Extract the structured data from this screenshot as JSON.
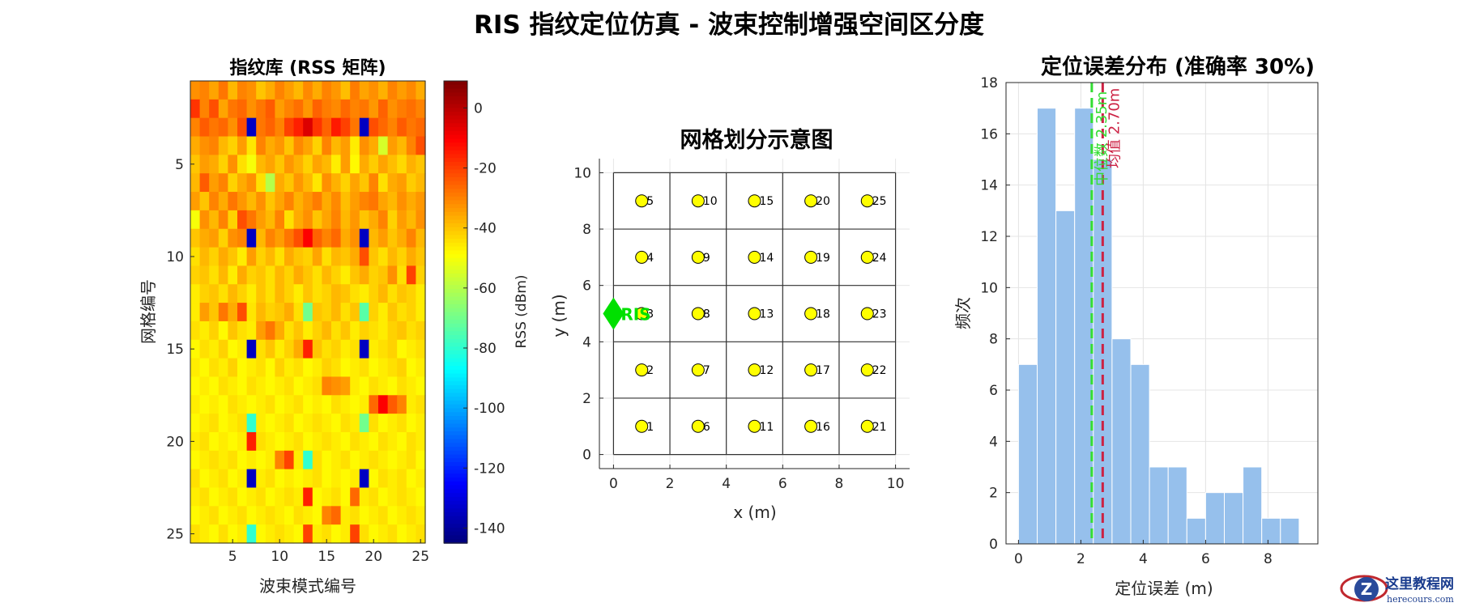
{
  "figure": {
    "title": "RIS 指纹定位仿真 - 波束控制增强空间区分度"
  },
  "chart_data": [
    {
      "type": "heatmap",
      "title": "指纹库 (RSS 矩阵)",
      "xlabel": "波束模式编号",
      "ylabel": "网格编号",
      "xticks": [
        5,
        10,
        15,
        20,
        25
      ],
      "yticks": [
        5,
        10,
        15,
        20,
        25
      ],
      "xlim": [
        0.5,
        25.5
      ],
      "ylim": [
        0.5,
        25.5
      ],
      "colorbar": {
        "label": "RSS (dBm)",
        "clim": [
          -145,
          9
        ],
        "ticks": [
          0,
          -20,
          -40,
          -60,
          -80,
          -100,
          -120,
          -140
        ],
        "colormap": "jet"
      },
      "matrix": [
        [
          -32,
          -30,
          -35,
          -28,
          -38,
          -30,
          -32,
          -40,
          -36,
          -30,
          -34,
          -38,
          -31,
          -36,
          -30,
          -33,
          -39,
          -29,
          -35,
          -32,
          -37,
          -30,
          -34,
          -31,
          -36
        ],
        [
          -18,
          -30,
          -22,
          -35,
          -28,
          -26,
          -32,
          -28,
          -24,
          -34,
          -30,
          -27,
          -33,
          -25,
          -29,
          -31,
          -26,
          -30,
          -28,
          -33,
          -25,
          -32,
          -29,
          -27,
          -30
        ],
        [
          -30,
          -24,
          -28,
          -26,
          -32,
          -22,
          -135,
          -28,
          -25,
          -30,
          -20,
          -15,
          -5,
          -18,
          -25,
          -14,
          -20,
          -28,
          -135,
          -22,
          -26,
          -30,
          -24,
          -28,
          -26
        ],
        [
          -36,
          -32,
          -30,
          -38,
          -42,
          -34,
          -45,
          -30,
          -36,
          -33,
          -40,
          -31,
          -35,
          -42,
          -30,
          -38,
          -34,
          -46,
          -32,
          -36,
          -55,
          -34,
          -38,
          -30,
          -22
        ],
        [
          -40,
          -34,
          -36,
          -42,
          -32,
          -44,
          -50,
          -38,
          -35,
          -40,
          -33,
          -37,
          -42,
          -35,
          -38,
          -46,
          -34,
          -48,
          -36,
          -41,
          -35,
          -39,
          -43,
          -37,
          -40
        ],
        [
          -38,
          -24,
          -34,
          -30,
          -42,
          -36,
          -32,
          -44,
          -60,
          -36,
          -40,
          -33,
          -38,
          -45,
          -32,
          -37,
          -42,
          -35,
          -40,
          -30,
          -44,
          -36,
          -34,
          -41,
          -38
        ],
        [
          -34,
          -40,
          -30,
          -36,
          -28,
          -33,
          -38,
          -32,
          -40,
          -35,
          -30,
          -37,
          -33,
          -29,
          -36,
          -31,
          -39,
          -34,
          -30,
          -28,
          -35,
          -38,
          -32,
          -36,
          -33
        ],
        [
          -50,
          -32,
          -38,
          -30,
          -42,
          -22,
          -28,
          -34,
          -38,
          -30,
          -44,
          -36,
          -32,
          -40,
          -35,
          -30,
          -38,
          -33,
          -40,
          -36,
          -30,
          -42,
          -34,
          -38,
          -32
        ],
        [
          -40,
          -36,
          -34,
          -42,
          -32,
          -30,
          -135,
          -38,
          -30,
          -34,
          -28,
          -22,
          -10,
          -25,
          -30,
          -26,
          -36,
          -32,
          -135,
          -38,
          -34,
          -40,
          -36,
          -30,
          -38
        ],
        [
          -44,
          -38,
          -42,
          -36,
          -40,
          -46,
          -34,
          -42,
          -38,
          -44,
          -36,
          -40,
          -42,
          -35,
          -44,
          -38,
          -40,
          -36,
          -22,
          -40,
          -44,
          -38,
          -42,
          -36,
          -40
        ],
        [
          -42,
          -40,
          -44,
          -38,
          -46,
          -36,
          -42,
          -40,
          -44,
          -38,
          -42,
          -36,
          -40,
          -44,
          -38,
          -42,
          -46,
          -40,
          -36,
          -42,
          -40,
          -32,
          -44,
          -20,
          -42
        ],
        [
          -46,
          -42,
          -40,
          -44,
          -38,
          -42,
          -46,
          -40,
          -44,
          -38,
          -42,
          -46,
          -40,
          -44,
          -42,
          -38,
          -40,
          -44,
          -46,
          -42,
          -38,
          -44,
          -40,
          -42,
          -46
        ],
        [
          -46,
          -34,
          -40,
          -28,
          -36,
          -22,
          -45,
          -38,
          -42,
          -40,
          -36,
          -44,
          -70,
          -40,
          -42,
          -38,
          -44,
          -40,
          -74,
          -42,
          -46,
          -40,
          -44,
          -42,
          -46
        ],
        [
          -44,
          -46,
          -42,
          -48,
          -40,
          -44,
          -46,
          -34,
          -28,
          -36,
          -44,
          -40,
          -46,
          -42,
          -38,
          -44,
          -40,
          -46,
          -42,
          -44,
          -46,
          -42,
          -40,
          -44,
          -42
        ],
        [
          -48,
          -44,
          -46,
          -42,
          -48,
          -46,
          -135,
          -44,
          -40,
          -46,
          -42,
          -36,
          -15,
          -40,
          -44,
          -42,
          -46,
          -44,
          -135,
          -46,
          -44,
          -42,
          -48,
          -46,
          -44
        ],
        [
          -46,
          -48,
          -44,
          -46,
          -42,
          -48,
          -46,
          -44,
          -48,
          -42,
          -46,
          -44,
          -48,
          -46,
          -42,
          -44,
          -48,
          -46,
          -44,
          -48,
          -46,
          -44,
          -42,
          -48,
          -46
        ],
        [
          -48,
          -46,
          -48,
          -44,
          -46,
          -48,
          -44,
          -46,
          -48,
          -46,
          -44,
          -48,
          -46,
          -44,
          -30,
          -32,
          -34,
          -46,
          -48,
          -44,
          -46,
          -48,
          -44,
          -46,
          -48
        ],
        [
          -46,
          -48,
          -46,
          -48,
          -44,
          -46,
          -48,
          -46,
          -44,
          -48,
          -46,
          -44,
          -48,
          -46,
          -48,
          -44,
          -46,
          -48,
          -46,
          -26,
          -10,
          -24,
          -30,
          -46,
          -44
        ],
        [
          -48,
          -46,
          -44,
          -48,
          -46,
          -44,
          -80,
          -46,
          -48,
          -46,
          -44,
          -48,
          -46,
          -44,
          -46,
          -48,
          -44,
          -46,
          -70,
          -44,
          -48,
          -46,
          -44,
          -48,
          -46
        ],
        [
          -46,
          -44,
          -48,
          -46,
          -48,
          -46,
          -15,
          -44,
          -46,
          -48,
          -46,
          -44,
          -48,
          -46,
          -44,
          -46,
          -48,
          -44,
          -46,
          -48,
          -44,
          -46,
          -48,
          -44,
          -46
        ],
        [
          -48,
          -46,
          -44,
          -46,
          -44,
          -48,
          -46,
          -48,
          -46,
          -30,
          -20,
          -46,
          -80,
          -44,
          -48,
          -46,
          -44,
          -48,
          -46,
          -44,
          -46,
          -48,
          -46,
          -44,
          -48
        ],
        [
          -44,
          -48,
          -46,
          -44,
          -48,
          -46,
          -135,
          -46,
          -44,
          -48,
          -46,
          -48,
          -46,
          -44,
          -48,
          -46,
          -48,
          -46,
          -135,
          -48,
          -44,
          -46,
          -44,
          -48,
          -46
        ],
        [
          -46,
          -44,
          -48,
          -46,
          -44,
          -48,
          -46,
          -44,
          -48,
          -46,
          -44,
          -46,
          -15,
          -48,
          -46,
          -44,
          -48,
          -26,
          -46,
          -44,
          -48,
          -46,
          -44,
          -46,
          -48
        ],
        [
          -48,
          -46,
          -44,
          -48,
          -46,
          -44,
          -48,
          -46,
          -44,
          -46,
          -48,
          -44,
          -46,
          -48,
          -30,
          -26,
          -46,
          -44,
          -48,
          -46,
          -44,
          -48,
          -46,
          -44,
          -46
        ],
        [
          -44,
          -46,
          -48,
          -44,
          -48,
          -46,
          -80,
          -48,
          -46,
          -44,
          -46,
          -48,
          -20,
          -46,
          -44,
          -48,
          -46,
          -20,
          -44,
          -48,
          -46,
          -44,
          -48,
          -46,
          -44
        ]
      ]
    },
    {
      "type": "scatter",
      "title": "网格划分示意图",
      "xlabel": "x (m)",
      "ylabel": "y (m)",
      "xlim": [
        -0.5,
        10.5
      ],
      "ylim": [
        -0.5,
        10.5
      ],
      "xticks": [
        0,
        2,
        4,
        6,
        8,
        10
      ],
      "yticks": [
        0,
        2,
        4,
        6,
        8,
        10
      ],
      "grid_lines": [
        0,
        2,
        4,
        6,
        8,
        10
      ],
      "ris_marker": {
        "x": 0,
        "y": 5,
        "label": "RIS",
        "color": "#00e000"
      },
      "points": [
        {
          "x": 1,
          "y": 1,
          "label": "1"
        },
        {
          "x": 1,
          "y": 3,
          "label": "2"
        },
        {
          "x": 1,
          "y": 5,
          "label": "3"
        },
        {
          "x": 1,
          "y": 7,
          "label": "4"
        },
        {
          "x": 1,
          "y": 9,
          "label": "5"
        },
        {
          "x": 3,
          "y": 1,
          "label": "6"
        },
        {
          "x": 3,
          "y": 3,
          "label": "7"
        },
        {
          "x": 3,
          "y": 5,
          "label": "8"
        },
        {
          "x": 3,
          "y": 7,
          "label": "9"
        },
        {
          "x": 3,
          "y": 9,
          "label": "10"
        },
        {
          "x": 5,
          "y": 1,
          "label": "11"
        },
        {
          "x": 5,
          "y": 3,
          "label": "12"
        },
        {
          "x": 5,
          "y": 5,
          "label": "13"
        },
        {
          "x": 5,
          "y": 7,
          "label": "14"
        },
        {
          "x": 5,
          "y": 9,
          "label": "15"
        },
        {
          "x": 7,
          "y": 1,
          "label": "16"
        },
        {
          "x": 7,
          "y": 3,
          "label": "17"
        },
        {
          "x": 7,
          "y": 5,
          "label": "18"
        },
        {
          "x": 7,
          "y": 7,
          "label": "19"
        },
        {
          "x": 7,
          "y": 9,
          "label": "20"
        },
        {
          "x": 9,
          "y": 1,
          "label": "21"
        },
        {
          "x": 9,
          "y": 3,
          "label": "22"
        },
        {
          "x": 9,
          "y": 5,
          "label": "23"
        },
        {
          "x": 9,
          "y": 7,
          "label": "24"
        },
        {
          "x": 9,
          "y": 9,
          "label": "25"
        }
      ]
    },
    {
      "type": "bar",
      "subtype": "histogram",
      "title": "定位误差分布 (准确率 30%)",
      "xlabel": "定位误差 (m)",
      "ylabel": "频次",
      "xlim": [
        -0.4,
        9.6
      ],
      "ylim": [
        0,
        18
      ],
      "xticks": [
        0,
        2,
        4,
        6,
        8
      ],
      "yticks": [
        0,
        2,
        4,
        6,
        8,
        10,
        12,
        14,
        16,
        18
      ],
      "bin_edges": [
        0,
        0.6,
        1.2,
        1.8,
        2.4,
        3.0,
        3.6,
        4.2,
        4.8,
        5.4,
        6.0,
        6.6,
        7.2,
        7.8,
        8.4,
        9.0
      ],
      "counts": [
        7,
        17,
        13,
        17,
        15,
        8,
        7,
        3,
        3,
        1,
        2,
        2,
        3,
        1,
        1
      ],
      "bar_color": "#96c0ec",
      "median": {
        "value": 2.35,
        "label": "中位数 2.35m",
        "color": "#33dd33"
      },
      "mean": {
        "value": 2.7,
        "label": "均值 2.70m",
        "color": "#cc2244"
      }
    }
  ],
  "watermark": {
    "text_cn": "这里教程网",
    "text_en": "herecours.com"
  }
}
